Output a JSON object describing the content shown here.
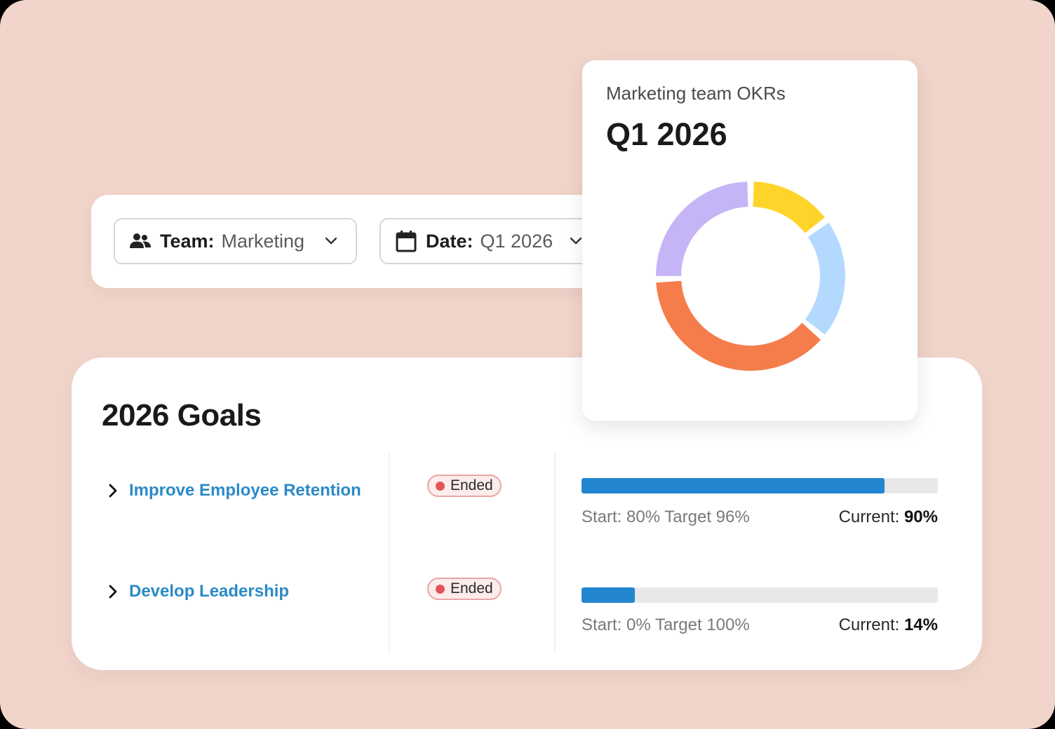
{
  "filters": {
    "team": {
      "icon": "team-icon",
      "key": "Team:",
      "value": "Marketing"
    },
    "date": {
      "icon": "calendar-icon",
      "key": "Date:",
      "value": "Q1 2026"
    }
  },
  "okr_card": {
    "subtitle": "Marketing team OKRs",
    "title": "Q1 2026"
  },
  "chart_data": {
    "type": "pie",
    "title": "",
    "donut": true,
    "slices": [
      {
        "value": 14,
        "color": "#ffd42a"
      },
      {
        "value": 20,
        "color": "#b3d9ff"
      },
      {
        "value": 36,
        "color": "#f57d4b"
      },
      {
        "value": 24,
        "color": "#c5b5f7"
      }
    ]
  },
  "goals": {
    "title": "2026 Goals",
    "rows": [
      {
        "name": "Improve Employee Retention",
        "status": "Ended",
        "progress": 0.85,
        "start_target": "Start: 80% Target 96%",
        "current_label": "Current:",
        "current_value": "90%"
      },
      {
        "name": "Develop Leadership",
        "status": "Ended",
        "progress": 0.15,
        "start_target": "Start: 0% Target 100%",
        "current_label": "Current:",
        "current_value": "14%"
      }
    ]
  },
  "colors": {
    "background": "#f1d5cb",
    "goal_link": "#2b8ac7",
    "progress": "#2386d0",
    "badge_dot": "#e4545a"
  }
}
